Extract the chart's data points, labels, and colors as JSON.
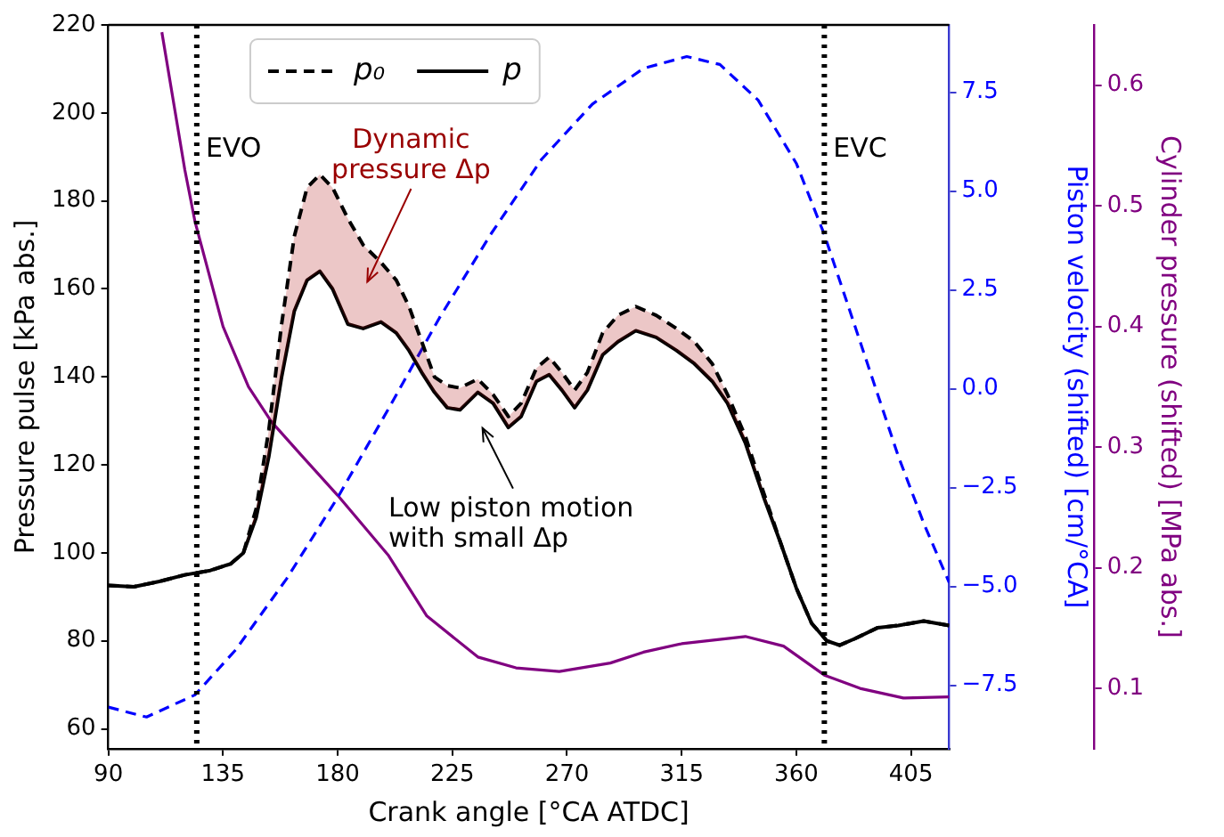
{
  "chart_data": {
    "type": "line",
    "xlabel": "Crank angle [°CA ATDC]",
    "ylabel": "Pressure pulse [kPa abs.]",
    "y2label": "Piston velocity (shifted) [cm/°CA]",
    "y3label": "Cylinder pressure (shifted) [MPa abs.]",
    "xlim": [
      90,
      420
    ],
    "xticks": [
      90,
      135,
      180,
      225,
      270,
      315,
      360,
      405
    ],
    "ylim": [
      55.5,
      220
    ],
    "yticks": [
      60,
      80,
      100,
      120,
      140,
      160,
      180,
      200,
      220
    ],
    "y2lim": [
      -9.1,
      9.2
    ],
    "y2ticks": [
      {
        "value": -7.5,
        "label": "−7.5"
      },
      {
        "value": -5,
        "label": "−5.0"
      },
      {
        "value": -2.5,
        "label": "−2.5"
      },
      {
        "value": 0,
        "label": "0.0"
      },
      2.5,
      {
        "value": 5,
        "label": "5.0"
      },
      7.5
    ],
    "y3lim": [
      0.05,
      0.65
    ],
    "y3ticks": [
      0.1,
      0.2,
      0.3,
      0.4,
      0.5,
      0.6
    ],
    "legend": "top left",
    "marker": "none",
    "series": [
      {
        "name": "p₀",
        "color": "#000000",
        "line_style": "dashed",
        "x": [
          90,
          100,
          110,
          120,
          130,
          138,
          143,
          148,
          153,
          158,
          163,
          168,
          173,
          178,
          184,
          190,
          197,
          203,
          208,
          213,
          218,
          223,
          228,
          235,
          241,
          247,
          252,
          258,
          263,
          268,
          273,
          278,
          284,
          290,
          297,
          305,
          313,
          320,
          327,
          333,
          340,
          347,
          354,
          360,
          366,
          372,
          377,
          383,
          392,
          400,
          410,
          415,
          420
        ],
        "values": [
          92.6,
          92.3,
          93.5,
          95,
          96,
          97.5,
          100,
          110,
          128,
          152,
          172,
          183,
          186,
          183,
          176,
          170,
          166,
          162,
          156,
          148,
          140,
          138,
          137.5,
          139.5,
          136,
          131,
          134,
          142,
          144.5,
          141,
          137,
          141,
          150,
          154,
          156,
          154,
          151,
          148,
          143,
          136,
          126.5,
          114,
          102,
          92,
          84,
          80,
          79,
          80.5,
          83,
          83.5,
          84.5,
          84,
          83.5
        ]
      },
      {
        "name": "p",
        "color": "#000000",
        "line_style": "solid",
        "x": [
          90,
          100,
          110,
          120,
          130,
          138,
          143,
          148,
          153,
          158,
          163,
          168,
          173,
          178,
          184,
          190,
          197,
          203,
          208,
          213,
          218,
          223,
          228,
          235,
          241,
          247,
          252,
          258,
          263,
          268,
          273,
          278,
          284,
          290,
          297,
          305,
          313,
          320,
          327,
          333,
          340,
          347,
          354,
          360,
          366,
          372,
          377,
          383,
          392,
          400,
          410,
          415,
          420
        ],
        "values": [
          92.6,
          92.3,
          93.5,
          95,
          96,
          97.5,
          100,
          108,
          122,
          140,
          155,
          162,
          164,
          160,
          152,
          151,
          152.5,
          150,
          146,
          141,
          136.5,
          133,
          132.5,
          136.5,
          134,
          128.5,
          131,
          139,
          140.5,
          137,
          133,
          137,
          145,
          148,
          150.5,
          149,
          146,
          143,
          139,
          134,
          125,
          113,
          102,
          92,
          84,
          80,
          79,
          80.5,
          83,
          83.5,
          84.5,
          84,
          83.5
        ]
      },
      {
        "color": "#0000ff",
        "line_style": "dashed",
        "axis": "y2",
        "x": [
          90,
          105,
          124,
          140,
          160,
          180,
          200,
          220,
          240,
          260,
          280,
          300,
          317,
          330,
          345,
          360,
          371,
          385,
          400,
          410,
          420
        ],
        "values": [
          -8.05,
          -8.3,
          -7.74,
          -6.6,
          -4.8,
          -2.75,
          -0.5,
          1.8,
          3.9,
          5.8,
          7.2,
          8.1,
          8.4,
          8.2,
          7.3,
          5.7,
          3.9,
          1.2,
          -1.7,
          -3.4,
          -4.9
        ]
      },
      {
        "color": "#800080",
        "line_style": "solid",
        "axis": "y3",
        "x": [
          111,
          120,
          124,
          135,
          145,
          154,
          165,
          180,
          200,
          215,
          235,
          250,
          267,
          287,
          300,
          315,
          340,
          355,
          371,
          385,
          402,
          420
        ],
        "values": [
          0.644,
          0.53,
          0.487,
          0.4,
          0.35,
          0.321,
          0.295,
          0.26,
          0.21,
          0.16,
          0.126,
          0.117,
          0.114,
          0.121,
          0.13,
          0.137,
          0.143,
          0.135,
          0.111,
          0.1,
          0.092,
          0.093
        ]
      }
    ],
    "ref_lines": [
      {
        "axis": "x",
        "value": 124.7,
        "label": "EVO",
        "color": "#000000",
        "line_style": "dotted"
      },
      {
        "axis": "x",
        "value": 371,
        "label": "EVC",
        "color": "#000000",
        "line_style": "dotted"
      }
    ],
    "annotations": [
      "Dynamic pressure Δp",
      "Low piston motion with small Δp"
    ]
  }
}
